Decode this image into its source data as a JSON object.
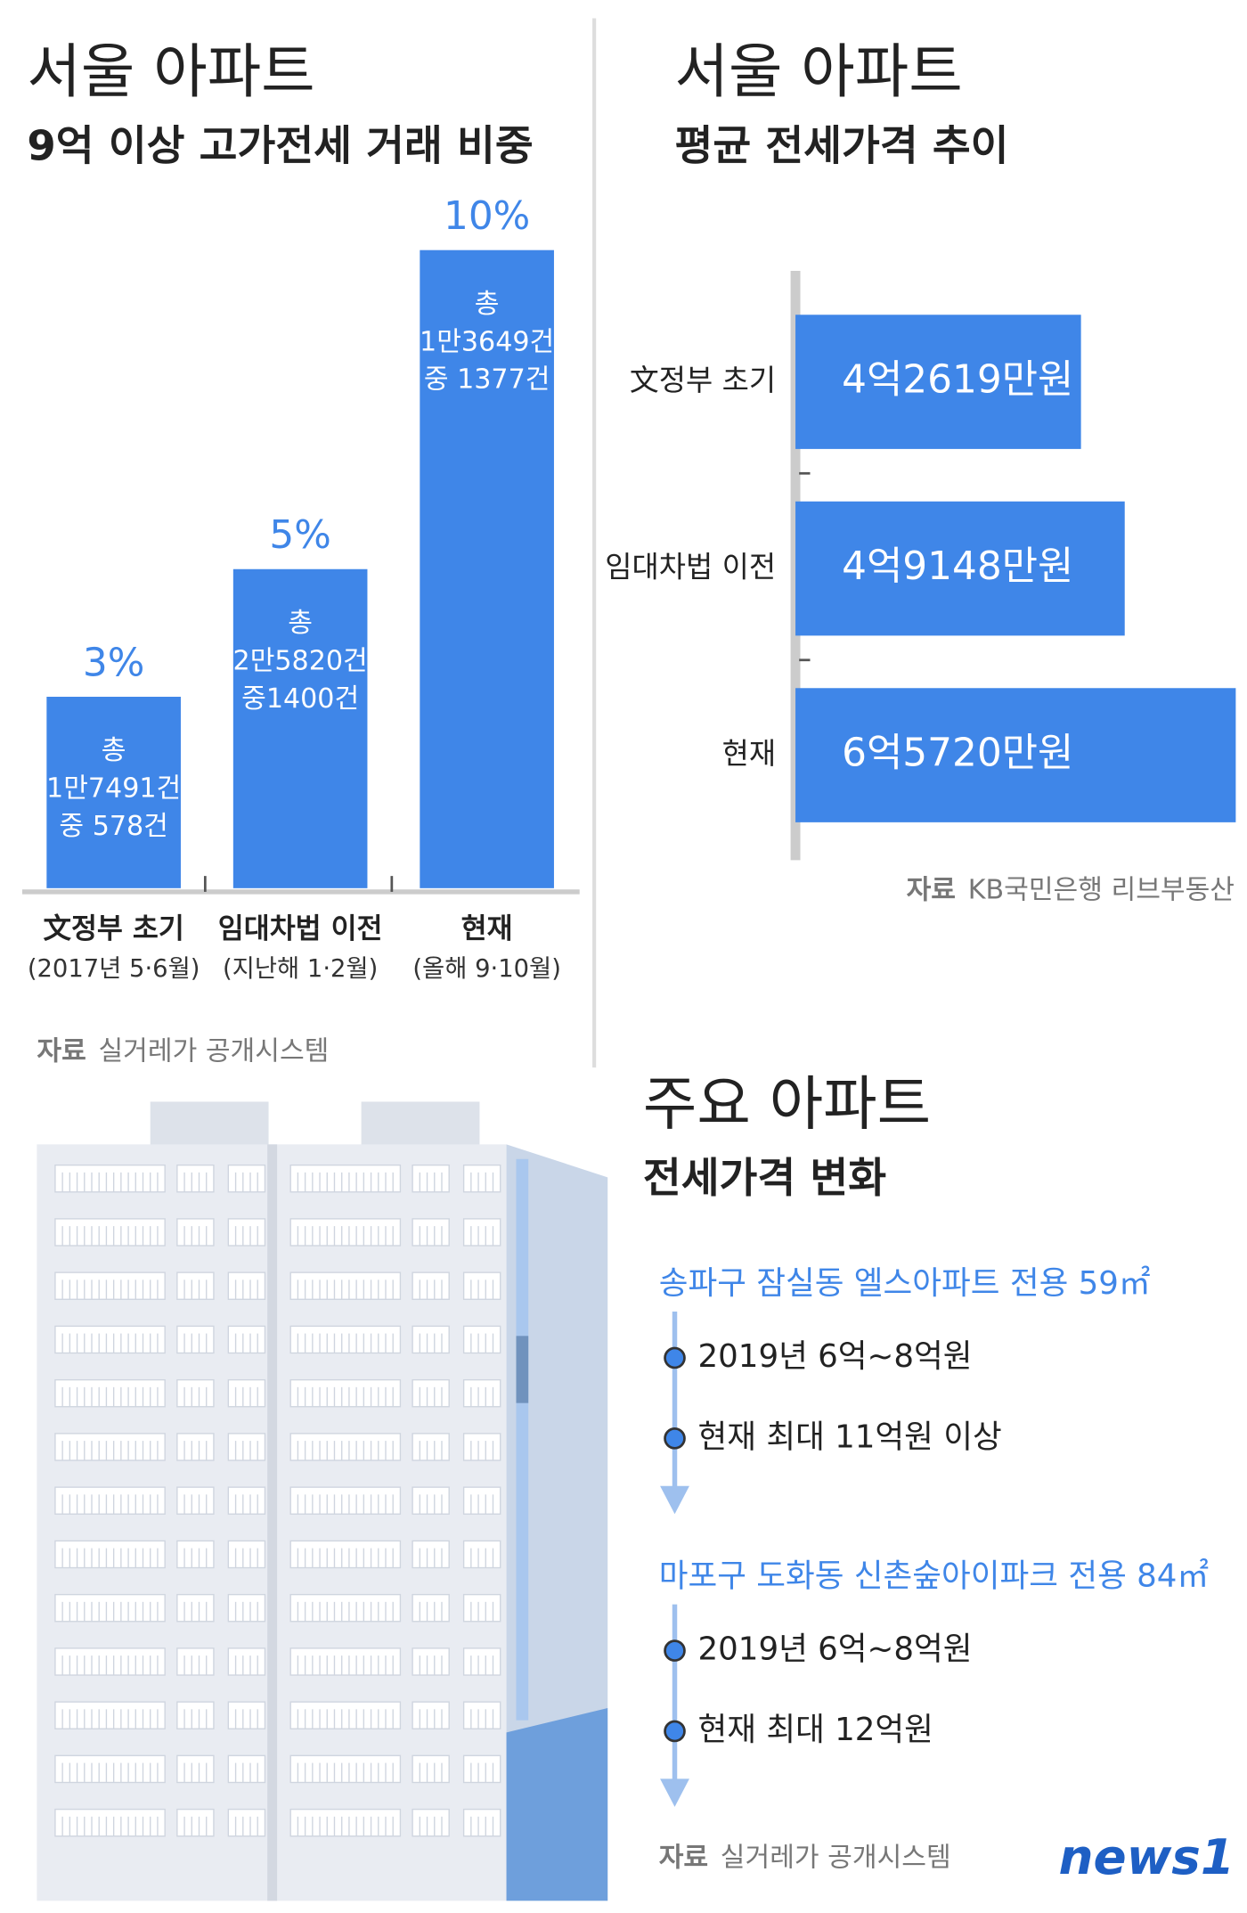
{
  "chart_data": [
    {
      "type": "bar",
      "title": "서울 아파트",
      "subtitle": "9억 이상 고가전세 거래 비중",
      "categories": [
        "文정부 초기",
        "임대차법 이전",
        "현재"
      ],
      "category_notes": [
        "(2017년 5·6월)",
        "(지난해 1·2월)",
        "(올해 9·10월)"
      ],
      "values": [
        3,
        5,
        10
      ],
      "value_labels": [
        "3%",
        "5%",
        "10%"
      ],
      "bar_notes": [
        [
          "총",
          "1만7491건",
          "중 578건"
        ],
        [
          "총",
          "2만5820건",
          "중1400건"
        ],
        [
          "총",
          "1만3649건",
          "중 1377건"
        ]
      ],
      "color": "#3f86e8",
      "source_label": "자료",
      "source": "실거레가 공개시스템"
    },
    {
      "type": "hbar",
      "title": "서울 아파트",
      "subtitle": "평균 전세가격 추이",
      "categories": [
        "文정부 초기",
        "임대차법 이전",
        "현재"
      ],
      "values": [
        42619,
        49148,
        65720
      ],
      "value_labels": [
        "4억2619만원",
        "4억9148만원",
        "6억5720만원"
      ],
      "color": "#3f86e8",
      "source_label": "자료",
      "source": "KB국민은행 리브부동산"
    }
  ],
  "timeline": {
    "title": "주요 아파트",
    "subtitle": "전세가격 변화",
    "items": [
      {
        "name": "송파구 잠실동 엘스아파트 전용 59㎡",
        "points": [
          "2019년 6억~8억원",
          "현재 최대 11억원 이상"
        ]
      },
      {
        "name": "마포구 도화동 신촌숲아이파크 전용 84㎡",
        "points": [
          "2019년 6억~8억원",
          "현재 최대 12억원"
        ]
      }
    ],
    "source_label": "자료",
    "source": "실거레가 공개시스템"
  },
  "logo": "news1"
}
